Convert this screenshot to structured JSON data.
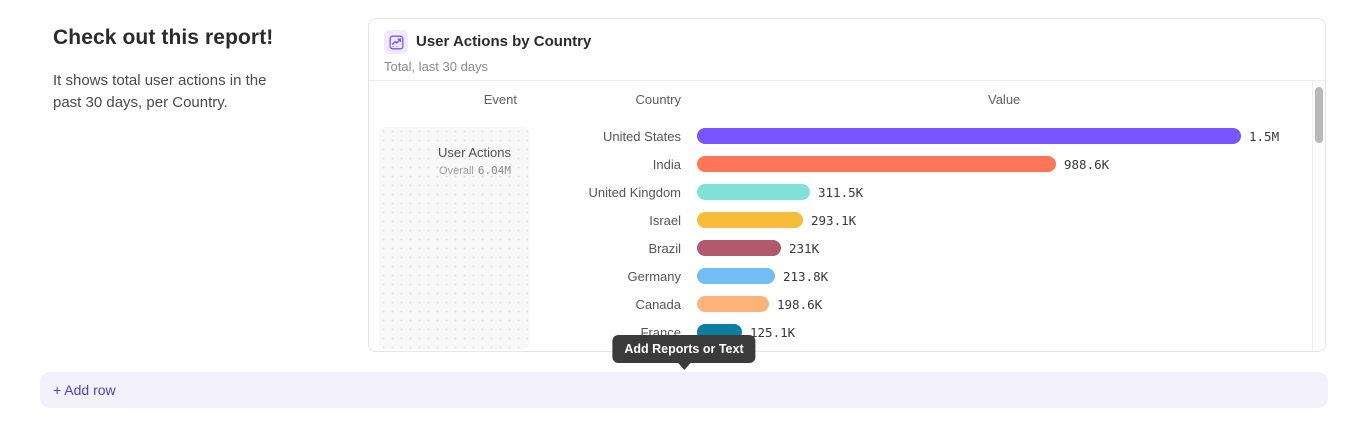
{
  "page": {
    "heading": "Check out this report!",
    "description": "It shows total user actions in the past 30 days, per Country."
  },
  "report_card": {
    "title": "User Actions by Country",
    "subtitle": "Total, last 30 days",
    "icon": "line-chart-icon",
    "table": {
      "columns": [
        "Event",
        "Country",
        "Value"
      ],
      "event_cell": {
        "name": "User Actions",
        "overall_label": "Overall",
        "overall_value": "6.04M"
      }
    }
  },
  "chart_data": {
    "type": "bar",
    "orientation": "horizontal",
    "title": "User Actions by Country",
    "subtitle": "Total, last 30 days",
    "event": "User Actions",
    "overall_total": "6.04M",
    "categories": [
      "United States",
      "India",
      "United Kingdom",
      "Israel",
      "Brazil",
      "Germany",
      "Canada",
      "France"
    ],
    "values": [
      1500000,
      988600,
      311500,
      293100,
      231000,
      213800,
      198600,
      125100
    ],
    "value_labels": [
      "1.5M",
      "988.6K",
      "311.5K",
      "293.1K",
      "231K",
      "213.8K",
      "198.6K",
      "125.1K"
    ],
    "bar_colors": [
      "#7856FF",
      "#FF7557",
      "#80E1D9",
      "#F8BC3B",
      "#B2596E",
      "#72BEF4",
      "#FFB27A",
      "#0D7EA0"
    ],
    "xlim": [
      0,
      1500000
    ],
    "legend": "none",
    "grid": false
  },
  "tooltip": {
    "text": "Add Reports or Text"
  },
  "footer": {
    "add_row_label": "+ Add row"
  },
  "colors": {
    "accent": "#7856FF",
    "icon_bg": "#EFEAFF",
    "tooltip_bg": "#3B3B3B",
    "add_row_bg": "#F3F1FC",
    "add_row_text": "#4B44C4"
  }
}
